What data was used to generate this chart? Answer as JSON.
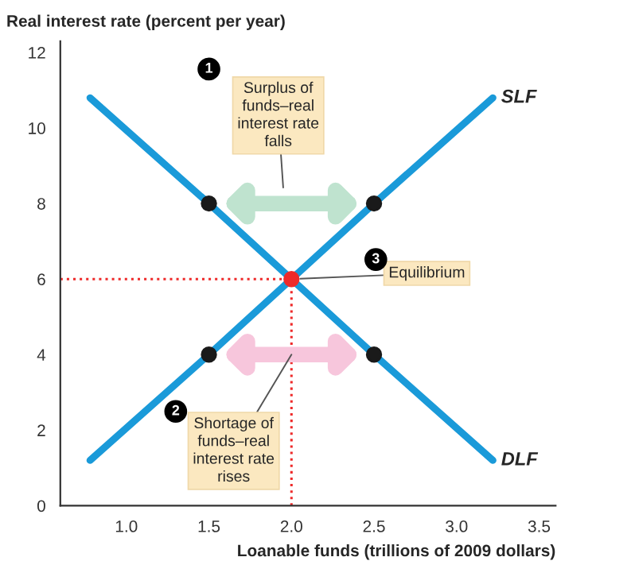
{
  "chart_data": {
    "type": "line",
    "ylabel": "Real interest rate (percent per year)",
    "xlabel": "Loanable funds (trillions of 2009 dollars)",
    "xlim": [
      0.6,
      3.6
    ],
    "xticks": [
      {
        "value": 1,
        "label": "1.0"
      },
      1.5,
      {
        "value": 2,
        "label": "2.0"
      },
      2.5,
      {
        "value": 3,
        "label": "3.0"
      },
      3.5
    ],
    "ylim": [
      0,
      12.3
    ],
    "yticks": [
      0,
      2,
      4,
      6,
      8,
      10,
      12
    ],
    "grid": false,
    "legend": false,
    "series": [
      {
        "name": "SLF",
        "color": "#1a9ad9",
        "x": [
          0.78,
          1.5,
          2.0,
          2.5,
          3.22
        ],
        "values": [
          1.2,
          4,
          6,
          8,
          10.8
        ]
      },
      {
        "name": "DLF",
        "color": "#1a9ad9",
        "x": [
          0.78,
          1.5,
          2.0,
          2.5,
          3.22
        ],
        "values": [
          10.8,
          8,
          6,
          4,
          1.2
        ]
      },
      {
        "type": "scatter",
        "x": [
          1.5,
          2.5,
          1.5,
          2.5,
          2.0
        ],
        "values": [
          8,
          8,
          4,
          4,
          6
        ],
        "colors": [
          "#1a1a1a",
          "#1a1a1a",
          "#1a1a1a",
          "#1a1a1a",
          "#ee2a2a"
        ]
      }
    ],
    "ref_lines": [
      {
        "axis": "x",
        "value": 2.0,
        "color": "#ee2a2a",
        "line_style": "dotted"
      },
      {
        "axis": "y",
        "value": 6,
        "color": "#ee2a2a",
        "line_style": "dotted"
      }
    ],
    "annotations": [
      "1",
      "Surplus of\nfunds–real\ninterest rate\nfalls",
      "2",
      {
        "text": "Shortage of\nfunds–real\ninterest rate\nrises",
        "x": 2.0,
        "y": 4
      },
      "3",
      {
        "text": "Equilibrium",
        "x": 2.0,
        "y": 6
      }
    ]
  }
}
